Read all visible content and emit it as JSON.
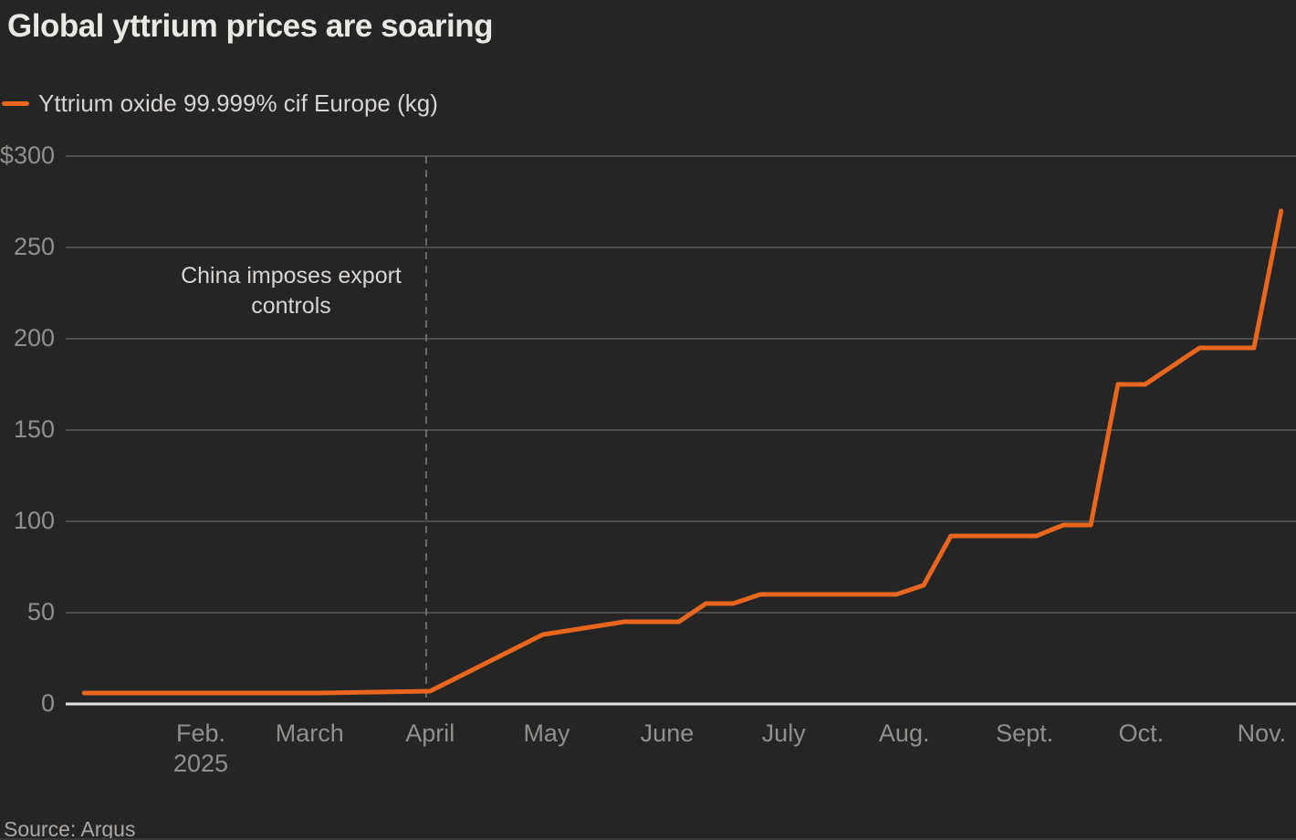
{
  "chart_data": {
    "type": "line",
    "title": "Global yttrium prices are soaring",
    "legend_position": "top-left",
    "grid": true,
    "background_color": "#262525",
    "accent_color": "#E8661E",
    "ylim": [
      0,
      300
    ],
    "yticks": [
      {
        "value": 0,
        "label": "0"
      },
      {
        "value": 50,
        "label": "50"
      },
      {
        "value": 100,
        "label": "100"
      },
      {
        "value": 150,
        "label": "150"
      },
      {
        "value": 200,
        "label": "200"
      },
      {
        "value": 250,
        "label": "250"
      },
      {
        "value": 300,
        "label": "$300"
      }
    ],
    "xticks": [
      {
        "doy": 32,
        "label": "Feb.",
        "sublabel": "2025"
      },
      {
        "doy": 60,
        "label": "March"
      },
      {
        "doy": 91,
        "label": "April"
      },
      {
        "doy": 121,
        "label": "May"
      },
      {
        "doy": 152,
        "label": "June"
      },
      {
        "doy": 182,
        "label": "July"
      },
      {
        "doy": 213,
        "label": "Aug."
      },
      {
        "doy": 244,
        "label": "Sept."
      },
      {
        "doy": 274,
        "label": "Oct."
      },
      {
        "doy": 305,
        "label": "Nov."
      }
    ],
    "annotation": {
      "text": "China imposes export controls",
      "doy": 90
    },
    "series": [
      {
        "name": "Yttrium oxide 99.999% cif Europe (kg)",
        "color": "#E8661E",
        "points": [
          {
            "date": "2025-01-02",
            "doy": 2,
            "value": 6
          },
          {
            "date": "2025-03-03",
            "doy": 62,
            "value": 6
          },
          {
            "date": "2025-04-01",
            "doy": 91,
            "value": 7
          },
          {
            "date": "2025-04-30",
            "doy": 120,
            "value": 38
          },
          {
            "date": "2025-05-21",
            "doy": 141,
            "value": 45
          },
          {
            "date": "2025-06-04",
            "doy": 155,
            "value": 45
          },
          {
            "date": "2025-06-11",
            "doy": 162,
            "value": 55
          },
          {
            "date": "2025-06-18",
            "doy": 169,
            "value": 55
          },
          {
            "date": "2025-06-25",
            "doy": 176,
            "value": 60
          },
          {
            "date": "2025-07-30",
            "doy": 211,
            "value": 60
          },
          {
            "date": "2025-08-06",
            "doy": 218,
            "value": 65
          },
          {
            "date": "2025-08-13",
            "doy": 225,
            "value": 92
          },
          {
            "date": "2025-09-04",
            "doy": 247,
            "value": 92
          },
          {
            "date": "2025-09-11",
            "doy": 254,
            "value": 98
          },
          {
            "date": "2025-09-18",
            "doy": 261,
            "value": 98
          },
          {
            "date": "2025-09-25",
            "doy": 268,
            "value": 175
          },
          {
            "date": "2025-10-02",
            "doy": 275,
            "value": 175
          },
          {
            "date": "2025-10-16",
            "doy": 289,
            "value": 195
          },
          {
            "date": "2025-10-30",
            "doy": 303,
            "value": 195
          },
          {
            "date": "2025-11-06",
            "doy": 310,
            "value": 270
          }
        ]
      }
    ],
    "source": "Source: Argus"
  }
}
